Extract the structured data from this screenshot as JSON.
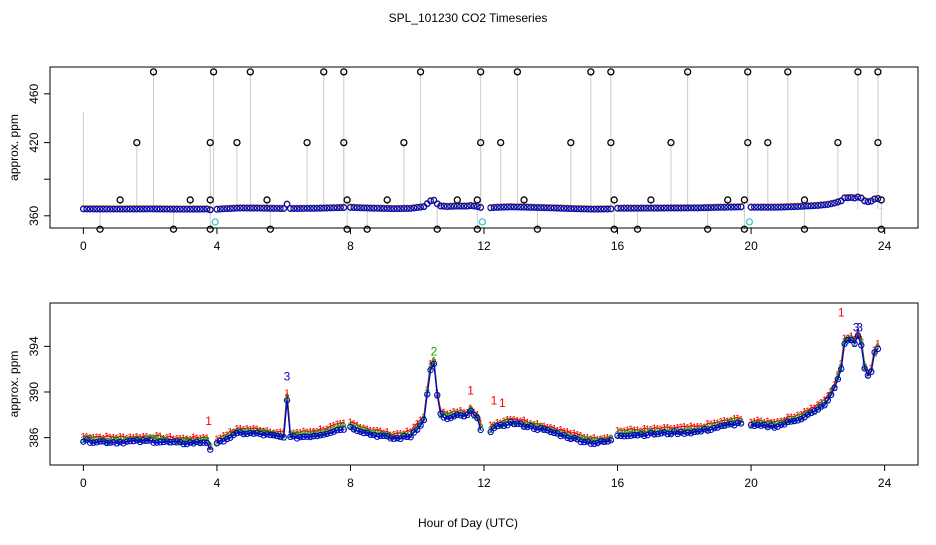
{
  "figure": {
    "title": "SPL_101230  CO2 Timeseries",
    "xlabel": "Hour of Day (UTC)"
  },
  "colors": {
    "axis": "#000000",
    "series1": "#ff0000",
    "series2": "#00aa00",
    "series3": "#0000cc",
    "extreme": "#000000",
    "flag": "#33cccc",
    "stem": "#999999"
  },
  "chart_data": [
    {
      "type": "scatter",
      "ylabel": "approx. ppm",
      "xlim": [
        -1,
        25
      ],
      "ylim": [
        350,
        482
      ],
      "xticks": [
        0,
        4,
        8,
        12,
        16,
        20,
        24
      ],
      "xtick_labels": [
        "0",
        "4",
        "8",
        "12",
        "16",
        "20",
        "24"
      ],
      "yticks": [
        360,
        420,
        460
      ],
      "ytick_labels": [
        "360",
        "420",
        "460"
      ],
      "extra_ytick_values": [
        390
      ],
      "baseline_note": "3 overlapping series of ~1-min CO2 averages near 364-372 ppm",
      "extremes_high": [
        2.1,
        3.9,
        5.0,
        7.2,
        7.8,
        10.1,
        11.9,
        13.0,
        15.2,
        15.8,
        18.1,
        19.9,
        21.1,
        23.2,
        23.8
      ],
      "extremes_high_value": 478,
      "extremes_low": [
        0.5,
        2.7,
        3.8,
        5.6,
        7.9,
        8.5,
        10.6,
        11.8,
        13.6,
        15.9,
        16.6,
        18.7,
        19.8,
        21.6,
        23.9
      ],
      "extremes_low_value": 349,
      "extremes_mid": [
        1.6,
        3.8,
        4.6,
        6.7,
        7.8,
        9.6,
        11.9,
        12.5,
        14.6,
        15.8,
        17.6,
        19.9,
        20.5,
        22.6,
        23.8
      ],
      "extremes_mid_value": 420,
      "extremes_near": [
        1.1,
        3.2,
        3.8,
        5.5,
        7.9,
        9.1,
        11.2,
        11.8,
        13.2,
        15.9,
        17.0,
        19.3,
        19.8,
        21.6,
        23.9
      ],
      "extremes_near_value": 373,
      "flagged_points": [
        {
          "x": 3.95,
          "y": 355
        },
        {
          "x": 11.95,
          "y": 355
        },
        {
          "x": 19.95,
          "y": 355
        }
      ],
      "stem_tall": {
        "x": 0.0,
        "y": 445
      }
    },
    {
      "type": "line",
      "ylabel": "approx. ppm",
      "xlim": [
        -1,
        25
      ],
      "ylim": [
        383.6,
        397.8
      ],
      "xticks": [
        0,
        4,
        8,
        12,
        16,
        20,
        24
      ],
      "xtick_labels": [
        "0",
        "4",
        "8",
        "12",
        "16",
        "20",
        "24"
      ],
      "yticks": [
        386,
        390,
        394
      ],
      "ytick_labels": [
        "386",
        "390",
        "394"
      ],
      "series": [
        {
          "name": "1",
          "marker": "1",
          "offset": 0.45
        },
        {
          "name": "2",
          "marker": "2",
          "offset": 0.2
        },
        {
          "name": "3",
          "marker": "o",
          "offset": 0.0
        }
      ],
      "base": {
        "x": [
          0,
          1,
          2,
          3,
          3.7,
          3.8,
          4.2,
          4.7,
          5.3,
          6.0,
          6.08,
          6.16,
          6.3,
          7.0,
          7.8,
          8.0,
          8.6,
          9.3,
          9.8,
          10.2,
          10.4,
          10.5,
          10.55,
          10.7,
          10.9,
          11.2,
          11.5,
          11.6,
          11.8,
          11.9,
          12.0,
          12.3,
          12.8,
          13.3,
          14.0,
          14.8,
          15.3,
          15.8,
          16.0,
          17.0,
          17.6,
          18.4,
          19.0,
          19.7,
          20.0,
          20.8,
          21.5,
          22.0,
          22.3,
          22.5,
          22.7,
          22.8,
          23.0,
          23.1,
          23.25,
          23.4,
          23.55,
          23.7,
          23.8
        ],
        "y": [
          385.7,
          385.6,
          385.7,
          385.5,
          385.6,
          385.0,
          385.8,
          386.4,
          386.3,
          386.0,
          390.5,
          386.0,
          386.0,
          386.2,
          386.8,
          386.9,
          386.3,
          385.9,
          386.1,
          387.5,
          392.0,
          392.4,
          390.5,
          388.0,
          387.6,
          387.9,
          387.9,
          388.3,
          387.6,
          386.8,
          386.2,
          386.8,
          387.3,
          387.0,
          386.5,
          385.8,
          385.5,
          385.7,
          386.2,
          386.3,
          386.4,
          386.5,
          386.9,
          387.3,
          387.0,
          387.0,
          387.7,
          388.4,
          389.2,
          390.3,
          392.0,
          394.3,
          394.6,
          394.2,
          395.3,
          392.0,
          391.0,
          393.4,
          393.8
        ]
      },
      "data_labels": [
        {
          "text": "1",
          "x": 3.75,
          "y": 387.1
        },
        {
          "text": "3",
          "x": 6.1,
          "y": 391.0
        },
        {
          "text": "1",
          "x": 12.3,
          "y": 388.9
        },
        {
          "text": "1",
          "x": 12.55,
          "y": 388.7
        },
        {
          "text": "1",
          "x": 22.7,
          "y": 396.6
        },
        {
          "text": "3",
          "x": 23.15,
          "y": 395.3
        },
        {
          "text": "3",
          "x": 23.25,
          "y": 395.3
        },
        {
          "text": "2",
          "x": 10.5,
          "y": 393.2
        },
        {
          "text": "1",
          "x": 11.6,
          "y": 389.8
        }
      ]
    }
  ]
}
